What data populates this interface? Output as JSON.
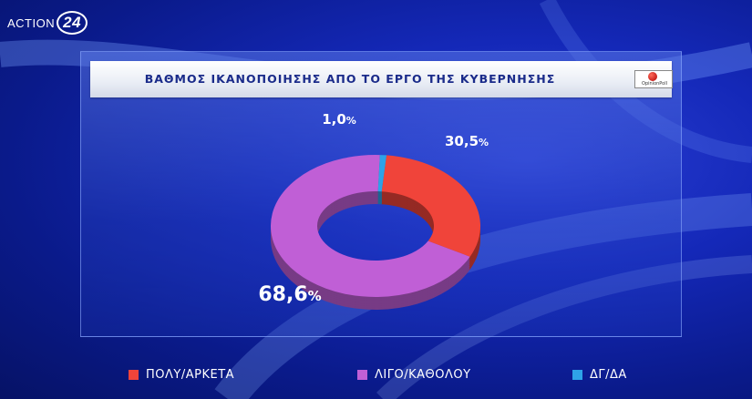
{
  "channel": {
    "brand": "ACTION",
    "number": "24"
  },
  "pollster": {
    "name": "OpinionPoll"
  },
  "colors": {
    "accent_title": "#1a2b8a",
    "slice_1": "#f0443a",
    "slice_2": "#c05fd6",
    "slice_3": "#2ea3e8"
  },
  "chart_data": {
    "type": "pie",
    "title": "ΒΑΘΜΟΣ ΙΚΑΝΟΠΟΙΗΣΗΣ ΑΠΟ ΤΟ ΕΡΓΟ ΤΗΣ ΚΥΒΕΡΝΗΣΗΣ",
    "style": "donut-3d",
    "legend_position": "bottom",
    "slices": [
      {
        "label": "ΠΟΛΥ/ΑΡΚΕΤΑ",
        "value": 30.5,
        "display_number": "30,5",
        "unit": "%",
        "color": "#f0443a"
      },
      {
        "label": "ΛΙΓΟ/ΚΑΘΟΛΟΥ",
        "value": 68.6,
        "display_number": "68,6",
        "unit": "%",
        "color": "#c05fd6"
      },
      {
        "label": "ΔΓ/ΔΑ",
        "value": 1.0,
        "display_number": "1,0",
        "unit": "%",
        "color": "#2ea3e8"
      }
    ]
  }
}
